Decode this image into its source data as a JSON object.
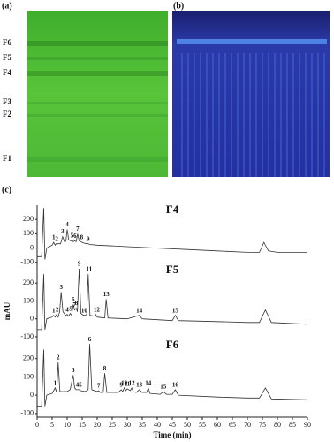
{
  "figure": {
    "panel_a": "(a)",
    "panel_b": "(b)",
    "panel_c": "(c)",
    "bands": [
      "F6",
      "F5",
      "F4",
      "F3",
      "F2",
      "F1"
    ]
  },
  "chart_data": [
    {
      "type": "line",
      "title": "F4",
      "color": "#333",
      "x": [
        0,
        1.5,
        2.2,
        2.6,
        3.2,
        4,
        5,
        5.5,
        6,
        6.3,
        7.8,
        8.5,
        9.2,
        9.6,
        10,
        10.5,
        11.2,
        11.6,
        12,
        12.5,
        13,
        13.5,
        14,
        14.6,
        15,
        15.5,
        16.6,
        17,
        17.5,
        20,
        30,
        40,
        50,
        60,
        70,
        74,
        75.5,
        77,
        80,
        90
      ],
      "values": [
        -60,
        -60,
        280,
        -80,
        0,
        10,
        20,
        40,
        20,
        30,
        30,
        80,
        40,
        50,
        130,
        60,
        50,
        55,
        45,
        50,
        45,
        100,
        50,
        45,
        40,
        35,
        30,
        30,
        25,
        20,
        10,
        0,
        -10,
        -20,
        -30,
        -30,
        40,
        -20,
        -30,
        -30
      ],
      "peaks": [
        {
          "label": "1",
          "x": 5.5,
          "y": 40
        },
        {
          "label": "2",
          "x": 6.5,
          "y": 30
        },
        {
          "label": "3",
          "x": 8.5,
          "y": 80
        },
        {
          "label": "4",
          "x": 10,
          "y": 130
        },
        {
          "label": "5",
          "x": 11.6,
          "y": 55
        },
        {
          "label": "6",
          "x": 12.6,
          "y": 50
        },
        {
          "label": "7",
          "x": 13.5,
          "y": 100
        },
        {
          "label": "8",
          "x": 14.8,
          "y": 40
        },
        {
          "label": "9",
          "x": 17,
          "y": 30
        }
      ],
      "ylim": [
        -120,
        300
      ],
      "yticks": [
        -100,
        0,
        100,
        200
      ]
    },
    {
      "type": "line",
      "title": "F5",
      "color": "#333",
      "ylabel": "mAU",
      "x": [
        0,
        1.5,
        2.2,
        2.6,
        3.2,
        4,
        5,
        5.5,
        6,
        6.5,
        7,
        7.5,
        8,
        8.6,
        9.5,
        10,
        10.5,
        11,
        11.5,
        12,
        12.5,
        13,
        13.4,
        14,
        14.6,
        15.5,
        16,
        16.5,
        17,
        17.6,
        19,
        19.5,
        20,
        22.5,
        23,
        23.6,
        30,
        34,
        35,
        45,
        46,
        47,
        60,
        70,
        74,
        76,
        78,
        90
      ],
      "values": [
        -60,
        -60,
        250,
        -60,
        0,
        5,
        10,
        20,
        10,
        25,
        10,
        40,
        150,
        40,
        20,
        25,
        15,
        30,
        20,
        80,
        50,
        60,
        40,
        280,
        30,
        20,
        20,
        25,
        250,
        20,
        15,
        25,
        10,
        5,
        110,
        5,
        0,
        20,
        0,
        -10,
        20,
        -10,
        -15,
        -20,
        -20,
        50,
        -20,
        -30
      ],
      "peaks": [
        {
          "label": "1",
          "x": 5.5,
          "y": 20
        },
        {
          "label": "2",
          "x": 6.7,
          "y": 25
        },
        {
          "label": "3",
          "x": 8,
          "y": 150
        },
        {
          "label": "4",
          "x": 10,
          "y": 25
        },
        {
          "label": "5",
          "x": 11.2,
          "y": 30
        },
        {
          "label": "6",
          "x": 12,
          "y": 80
        },
        {
          "label": "7",
          "x": 12.4,
          "y": 50
        },
        {
          "label": "8",
          "x": 13.1,
          "y": 60
        },
        {
          "label": "9",
          "x": 14,
          "y": 280
        },
        {
          "label": "10",
          "x": 15.7,
          "y": 20
        },
        {
          "label": "11",
          "x": 17.3,
          "y": 250
        },
        {
          "label": "12",
          "x": 19.8,
          "y": 25
        },
        {
          "label": "13",
          "x": 23,
          "y": 110
        },
        {
          "label": "14",
          "x": 34,
          "y": 20
        },
        {
          "label": "15",
          "x": 46,
          "y": 20
        }
      ],
      "ylim": [
        -120,
        300
      ],
      "yticks": [
        -100,
        0,
        100,
        200
      ]
    },
    {
      "type": "line",
      "title": "F6",
      "color": "#333",
      "xlabel": "Time (min)",
      "x": [
        0,
        1.5,
        2.2,
        2.6,
        3.2,
        5,
        6,
        6.5,
        7,
        7.6,
        10,
        11,
        12,
        12.5,
        13,
        14,
        14.5,
        16,
        17,
        17.5,
        18.2,
        20,
        20.5,
        21,
        22,
        22.5,
        23.2,
        27,
        28,
        28.5,
        29,
        29.5,
        30,
        31,
        31.5,
        32,
        33,
        34,
        35,
        36.5,
        37,
        37.6,
        41,
        42,
        43,
        45,
        46,
        47,
        60,
        70,
        74,
        76,
        78,
        90
      ],
      "values": [
        -60,
        -60,
        250,
        -60,
        0,
        10,
        40,
        15,
        180,
        20,
        20,
        30,
        110,
        40,
        30,
        30,
        25,
        20,
        30,
        280,
        30,
        20,
        25,
        15,
        15,
        120,
        15,
        15,
        30,
        20,
        40,
        25,
        35,
        25,
        40,
        20,
        15,
        30,
        15,
        15,
        40,
        10,
        5,
        20,
        5,
        5,
        30,
        0,
        -10,
        -15,
        -15,
        40,
        -20,
        -25
      ],
      "peaks": [
        {
          "label": "1",
          "x": 6,
          "y": 40
        },
        {
          "label": "2",
          "x": 7,
          "y": 180
        },
        {
          "label": "3",
          "x": 12,
          "y": 110
        },
        {
          "label": "4",
          "x": 13.4,
          "y": 30
        },
        {
          "label": "5",
          "x": 14.4,
          "y": 30
        },
        {
          "label": "6",
          "x": 17.5,
          "y": 280
        },
        {
          "label": "7",
          "x": 20.5,
          "y": 25
        },
        {
          "label": "8",
          "x": 22.5,
          "y": 120
        },
        {
          "label": "9",
          "x": 28,
          "y": 30
        },
        {
          "label": "10",
          "x": 29,
          "y": 40
        },
        {
          "label": "11",
          "x": 30,
          "y": 35
        },
        {
          "label": "12",
          "x": 31.5,
          "y": 40
        },
        {
          "label": "13",
          "x": 34,
          "y": 30
        },
        {
          "label": "14",
          "x": 37,
          "y": 40
        },
        {
          "label": "15",
          "x": 42,
          "y": 20
        },
        {
          "label": "16",
          "x": 46,
          "y": 30
        }
      ],
      "ylim": [
        -120,
        300
      ],
      "yticks": [
        -100,
        0,
        100,
        200
      ],
      "xlim": [
        0,
        90
      ],
      "xticks": [
        0,
        5,
        10,
        15,
        20,
        25,
        30,
        35,
        40,
        45,
        50,
        55,
        60,
        65,
        70,
        75,
        80,
        85,
        90
      ]
    }
  ]
}
